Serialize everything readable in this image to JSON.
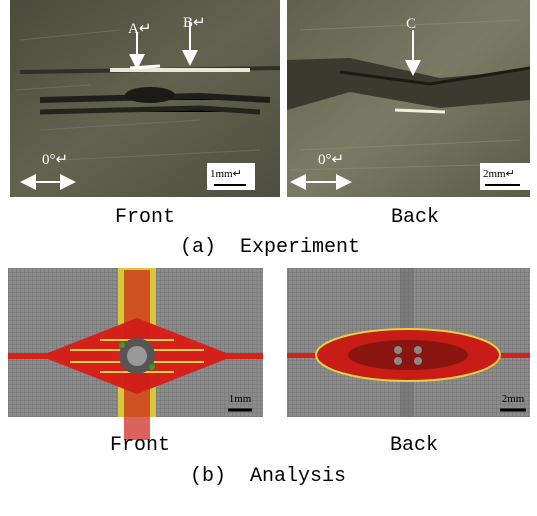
{
  "panels": [
    {
      "label": "(a)  Experiment",
      "images": [
        {
          "caption": "Front",
          "annotations": [
            "A↵",
            "B↵"
          ],
          "angle": "0°↵",
          "scale": "1mm↵"
        },
        {
          "caption": "Back",
          "annotations": [
            "C"
          ],
          "angle": "0°↵",
          "scale": "2mm↵"
        }
      ]
    },
    {
      "label": "(b)  Analysis",
      "images": [
        {
          "caption": "Front",
          "scale": "1mm"
        },
        {
          "caption": "Back",
          "scale": "2mm"
        }
      ]
    }
  ]
}
